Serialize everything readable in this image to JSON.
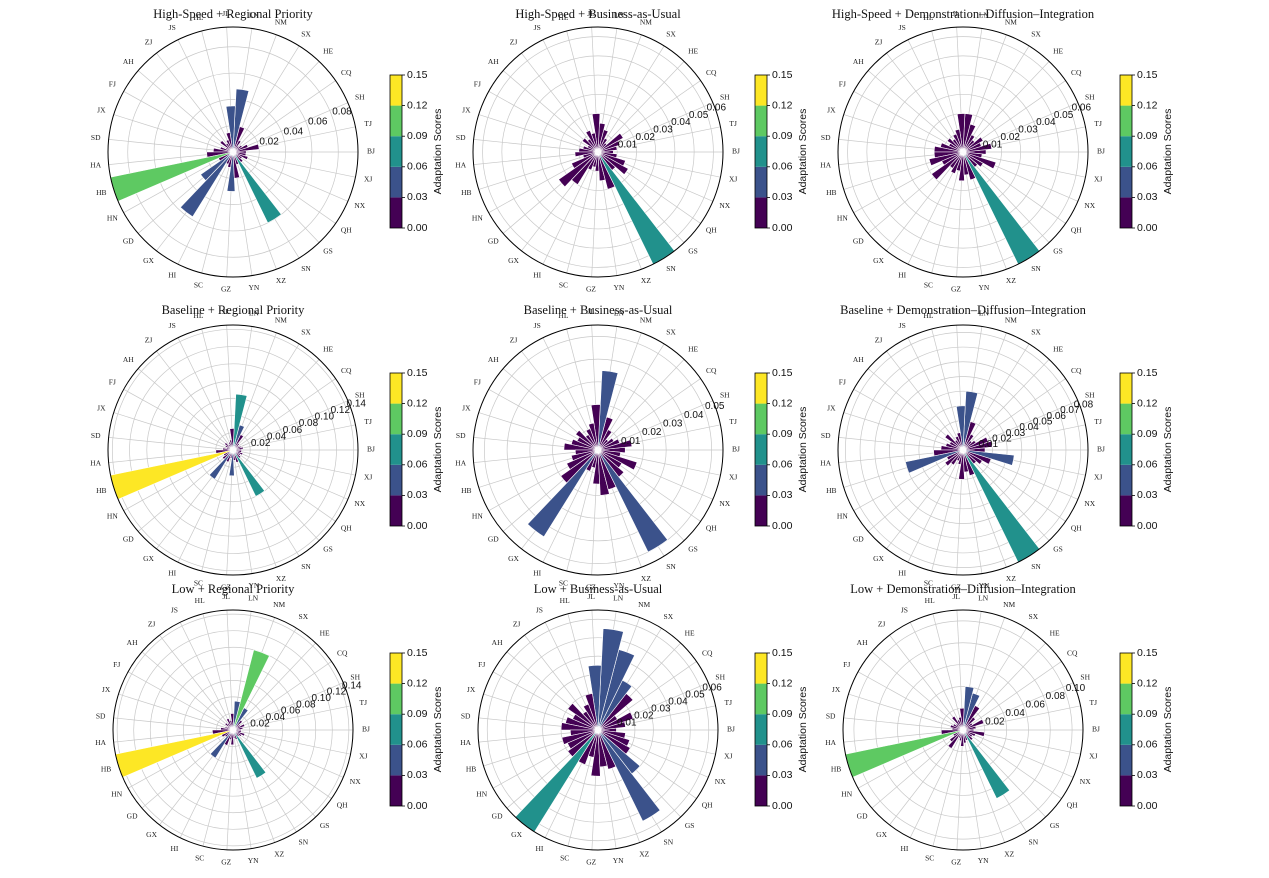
{
  "chart_data": [
    {
      "type": "polar",
      "title": "High-Speed + Regional Priority",
      "categories": [
        "BJ",
        "TJ",
        "SH",
        "CQ",
        "HE",
        "SX",
        "NM",
        "LN",
        "JL",
        "HL",
        "JS",
        "ZJ",
        "AH",
        "FJ",
        "JX",
        "SD",
        "HA",
        "HB",
        "HN",
        "GD",
        "GX",
        "HI",
        "SC",
        "GZ",
        "YN",
        "XZ",
        "SN",
        "GS",
        "QH",
        "NX",
        "XJ"
      ],
      "values": [
        0.01,
        0.02,
        0.012,
        0.008,
        0.006,
        0.01,
        0.02,
        0.048,
        0.035,
        0.015,
        0.01,
        0.008,
        0.012,
        0.006,
        0.01,
        0.015,
        0.02,
        0.095,
        0.012,
        0.03,
        0.058,
        0.01,
        0.012,
        0.03,
        0.02,
        0.01,
        0.06,
        0.01,
        0.008,
        0.012,
        0.01
      ],
      "rlim": [
        0,
        0.095
      ],
      "rticks": [
        0.02,
        0.04,
        0.06,
        0.08
      ],
      "colorbar": {
        "label": "Adaptation Scores",
        "lim": [
          0,
          0.15
        ],
        "ticks": [
          {
            "value": 0,
            "label": "0.00"
          },
          0.03,
          0.06,
          0.09,
          0.12,
          0.15
        ],
        "colors": [
          "#440154",
          "#3b528b",
          "#21918c",
          "#5ec962",
          "#fde725"
        ]
      }
    },
    {
      "type": "polar",
      "title": "High-Speed + Business-as-Usual",
      "categories": [
        "BJ",
        "TJ",
        "SH",
        "CQ",
        "HE",
        "SX",
        "NM",
        "LN",
        "JL",
        "HL",
        "JS",
        "ZJ",
        "AH",
        "FJ",
        "JX",
        "SD",
        "HA",
        "HB",
        "HN",
        "GD",
        "GX",
        "HI",
        "SC",
        "GZ",
        "YN",
        "XZ",
        "SN",
        "GS",
        "QH",
        "NX",
        "XJ"
      ],
      "values": [
        0.008,
        0.01,
        0.012,
        0.015,
        0.006,
        0.008,
        0.012,
        0.015,
        0.02,
        0.01,
        0.012,
        0.008,
        0.01,
        0.006,
        0.008,
        0.01,
        0.012,
        0.008,
        0.015,
        0.025,
        0.02,
        0.01,
        0.008,
        0.01,
        0.015,
        0.02,
        0.065,
        0.012,
        0.018,
        0.015,
        0.01
      ],
      "rlim": [
        0,
        0.065
      ],
      "rticks": [
        0.01,
        0.02,
        0.03,
        0.04,
        0.05,
        0.06
      ],
      "colorbar": {
        "label": "Adaptation Scores",
        "lim": [
          0,
          0.15
        ],
        "ticks": [
          {
            "value": 0,
            "label": "0.00"
          },
          0.03,
          0.06,
          0.09,
          0.12,
          0.15
        ],
        "colors": [
          "#440154",
          "#3b528b",
          "#21918c",
          "#5ec962",
          "#fde725"
        ]
      }
    },
    {
      "type": "polar",
      "title": "High-Speed + Demonstration–Diffusion–Integration",
      "categories": [
        "BJ",
        "TJ",
        "SH",
        "CQ",
        "HE",
        "SX",
        "NM",
        "LN",
        "JL",
        "HL",
        "JS",
        "ZJ",
        "AH",
        "FJ",
        "JX",
        "SD",
        "HA",
        "HB",
        "HN",
        "GD",
        "GX",
        "HI",
        "SC",
        "GZ",
        "YN",
        "XZ",
        "SN",
        "GS",
        "QH",
        "NX",
        "XJ"
      ],
      "values": [
        0.012,
        0.015,
        0.01,
        0.012,
        0.008,
        0.01,
        0.015,
        0.02,
        0.02,
        0.012,
        0.01,
        0.008,
        0.01,
        0.008,
        0.012,
        0.015,
        0.015,
        0.018,
        0.012,
        0.02,
        0.01,
        0.012,
        0.01,
        0.015,
        0.012,
        0.015,
        0.065,
        0.01,
        0.012,
        0.018,
        0.01
      ],
      "rlim": [
        0,
        0.065
      ],
      "rticks": [
        0.01,
        0.02,
        0.03,
        0.04,
        0.05,
        0.06
      ],
      "colorbar": {
        "label": "Adaptation Scores",
        "lim": [
          0,
          0.15
        ],
        "ticks": [
          {
            "value": 0,
            "label": "0.00"
          },
          0.03,
          0.06,
          0.09,
          0.12,
          0.15
        ],
        "colors": [
          "#440154",
          "#3b528b",
          "#21918c",
          "#5ec962",
          "#fde725"
        ]
      }
    },
    {
      "type": "polar",
      "title": "Baseline + Regional Priority",
      "categories": [
        "BJ",
        "TJ",
        "SH",
        "CQ",
        "HE",
        "SX",
        "NM",
        "LN",
        "JL",
        "HL",
        "JS",
        "ZJ",
        "AH",
        "FJ",
        "JX",
        "SD",
        "HA",
        "HB",
        "HN",
        "GD",
        "GX",
        "HI",
        "SC",
        "GZ",
        "YN",
        "XZ",
        "SN",
        "GS",
        "QH",
        "NX",
        "XJ"
      ],
      "values": [
        0.01,
        0.012,
        0.01,
        0.008,
        0.01,
        0.02,
        0.03,
        0.065,
        0.025,
        0.012,
        0.01,
        0.008,
        0.012,
        0.01,
        0.008,
        0.012,
        0.02,
        0.145,
        0.012,
        0.015,
        0.04,
        0.015,
        0.01,
        0.03,
        0.012,
        0.015,
        0.06,
        0.012,
        0.01,
        0.012,
        0.01
      ],
      "rlim": [
        0,
        0.145
      ],
      "rticks": [
        0.02,
        0.04,
        0.06,
        0.08,
        {
          "value": 0.1,
          "label": "0.10"
        },
        0.12,
        0.14
      ],
      "colorbar": {
        "label": "Adaptation Scores",
        "lim": [
          0,
          0.15
        ],
        "ticks": [
          {
            "value": 0,
            "label": "0.00"
          },
          0.03,
          0.06,
          0.09,
          0.12,
          0.15
        ],
        "colors": [
          "#440154",
          "#3b528b",
          "#21918c",
          "#5ec962",
          "#fde725"
        ]
      }
    },
    {
      "type": "polar",
      "title": "Baseline + Business-as-Usual",
      "categories": [
        "BJ",
        "TJ",
        "SH",
        "CQ",
        "HE",
        "SX",
        "NM",
        "LN",
        "JL",
        "HL",
        "JS",
        "ZJ",
        "AH",
        "FJ",
        "JX",
        "SD",
        "HA",
        "HB",
        "HN",
        "GD",
        "GX",
        "HI",
        "SC",
        "GZ",
        "YN",
        "XZ",
        "SN",
        "GS",
        "QH",
        "NX",
        "XJ"
      ],
      "values": [
        0.012,
        0.015,
        0.01,
        0.008,
        0.006,
        0.01,
        0.015,
        0.035,
        0.02,
        0.012,
        0.01,
        0.008,
        0.012,
        0.01,
        0.012,
        0.015,
        0.01,
        0.012,
        0.015,
        0.02,
        0.045,
        0.01,
        0.008,
        0.015,
        0.02,
        0.018,
        0.05,
        0.015,
        0.012,
        0.018,
        0.01
      ],
      "rlim": [
        0,
        0.055
      ],
      "rticks": [
        0.01,
        0.02,
        0.03,
        0.04,
        0.05
      ],
      "colorbar": {
        "label": "Adaptation Scores",
        "lim": [
          0,
          0.15
        ],
        "ticks": [
          {
            "value": 0,
            "label": "0.00"
          },
          0.03,
          0.06,
          0.09,
          0.12,
          0.15
        ],
        "colors": [
          "#440154",
          "#3b528b",
          "#21918c",
          "#5ec962",
          "#fde725"
        ]
      }
    },
    {
      "type": "polar",
      "title": "Baseline + Demonstration–Diffusion–Integration",
      "categories": [
        "BJ",
        "TJ",
        "SH",
        "CQ",
        "HE",
        "SX",
        "NM",
        "LN",
        "JL",
        "HL",
        "JS",
        "ZJ",
        "AH",
        "FJ",
        "JX",
        "SD",
        "HA",
        "HB",
        "HN",
        "GD",
        "GX",
        "HI",
        "SC",
        "GZ",
        "YN",
        "XZ",
        "SN",
        "GS",
        "QH",
        "NX",
        "XJ"
      ],
      "values": [
        0.015,
        0.02,
        0.018,
        0.01,
        0.008,
        0.012,
        0.02,
        0.04,
        0.03,
        0.012,
        0.01,
        0.008,
        0.015,
        0.01,
        0.012,
        0.015,
        0.02,
        0.04,
        0.012,
        0.015,
        0.012,
        0.008,
        0.01,
        0.02,
        0.015,
        0.018,
        0.085,
        0.012,
        0.015,
        0.02,
        0.035
      ],
      "rlim": [
        0,
        0.085
      ],
      "rticks": [
        0.01,
        0.02,
        0.03,
        0.04,
        0.05,
        0.06,
        0.07,
        0.08
      ],
      "colorbar": {
        "label": "Adaptation Scores",
        "lim": [
          0,
          0.15
        ],
        "ticks": [
          {
            "value": 0,
            "label": "0.00"
          },
          0.03,
          0.06,
          0.09,
          0.12,
          0.15
        ],
        "colors": [
          "#440154",
          "#3b528b",
          "#21918c",
          "#5ec962",
          "#fde725"
        ]
      }
    },
    {
      "type": "polar",
      "title": "Low + Regional Priority",
      "categories": [
        "BJ",
        "TJ",
        "SH",
        "CQ",
        "HE",
        "SX",
        "NM",
        "LN",
        "JL",
        "HL",
        "JS",
        "ZJ",
        "AH",
        "FJ",
        "JX",
        "SD",
        "HA",
        "HB",
        "HN",
        "GD",
        "GX",
        "HI",
        "SC",
        "GZ",
        "YN",
        "XZ",
        "SN",
        "GS",
        "QH",
        "NX",
        "XJ"
      ],
      "values": [
        0.01,
        0.012,
        0.015,
        0.01,
        0.015,
        0.03,
        0.1,
        0.035,
        0.02,
        0.012,
        0.015,
        0.01,
        0.012,
        0.008,
        0.01,
        0.015,
        0.025,
        0.145,
        0.015,
        0.012,
        0.04,
        0.02,
        0.012,
        0.018,
        0.01,
        0.012,
        0.065,
        0.01,
        0.012,
        0.015,
        0.01
      ],
      "rlim": [
        0,
        0.145
      ],
      "rticks": [
        0.02,
        0.04,
        0.06,
        0.08,
        {
          "value": 0.1,
          "label": "0.10"
        },
        0.12,
        0.14
      ],
      "colorbar": {
        "label": "Adaptation Scores",
        "lim": [
          0,
          0.15
        ],
        "ticks": [
          {
            "value": 0,
            "label": "0.00"
          },
          0.03,
          0.06,
          0.09,
          0.12,
          0.15
        ],
        "colors": [
          "#440154",
          "#3b528b",
          "#21918c",
          "#5ec962",
          "#fde725"
        ]
      }
    },
    {
      "type": "polar",
      "title": "Low + Business-as-Usual",
      "categories": [
        "BJ",
        "TJ",
        "SH",
        "CQ",
        "HE",
        "SX",
        "NM",
        "LN",
        "JL",
        "HL",
        "JS",
        "ZJ",
        "AH",
        "FJ",
        "JX",
        "SD",
        "HA",
        "HB",
        "HN",
        "GD",
        "GX",
        "HI",
        "SC",
        "GZ",
        "YN",
        "XZ",
        "SN",
        "GS",
        "QH",
        "NX",
        "XJ"
      ],
      "values": [
        0.01,
        0.015,
        0.02,
        0.012,
        0.025,
        0.03,
        0.045,
        0.055,
        0.035,
        0.02,
        0.015,
        0.012,
        0.02,
        0.015,
        0.018,
        0.02,
        0.015,
        0.02,
        0.018,
        0.02,
        0.065,
        0.02,
        0.015,
        0.025,
        0.02,
        0.022,
        0.055,
        0.03,
        0.02,
        0.018,
        0.015
      ],
      "rlim": [
        0,
        0.065
      ],
      "rticks": [
        0.01,
        0.02,
        0.03,
        0.04,
        0.05,
        0.06
      ],
      "colorbar": {
        "label": "Adaptation Scores",
        "lim": [
          0,
          0.15
        ],
        "ticks": [
          {
            "value": 0,
            "label": "0.00"
          },
          0.03,
          0.06,
          0.09,
          0.12,
          0.15
        ],
        "colors": [
          "#440154",
          "#3b528b",
          "#21918c",
          "#5ec962",
          "#fde725"
        ]
      }
    },
    {
      "type": "polar",
      "title": "Low + Demonstration–Diffusion–Integration",
      "categories": [
        "BJ",
        "TJ",
        "SH",
        "CQ",
        "HE",
        "SX",
        "NM",
        "LN",
        "JL",
        "HL",
        "JS",
        "ZJ",
        "AH",
        "FJ",
        "JX",
        "SD",
        "HA",
        "HB",
        "HN",
        "GD",
        "GX",
        "HI",
        "SC",
        "GZ",
        "YN",
        "XZ",
        "SN",
        "GS",
        "QH",
        "NX",
        "XJ"
      ],
      "values": [
        0.01,
        0.012,
        0.02,
        0.01,
        0.015,
        0.025,
        0.035,
        0.04,
        0.02,
        0.012,
        0.01,
        0.015,
        0.008,
        0.01,
        0.012,
        0.01,
        0.02,
        0.11,
        0.01,
        0.015,
        0.02,
        0.008,
        0.01,
        0.015,
        0.012,
        0.01,
        0.07,
        0.012,
        0.01,
        0.012,
        0.02
      ],
      "rlim": [
        0,
        0.11
      ],
      "rticks": [
        0.02,
        0.04,
        0.06,
        0.08,
        {
          "value": 0.1,
          "label": "0.10"
        }
      ],
      "colorbar": {
        "label": "Adaptation Scores",
        "lim": [
          0,
          0.15
        ],
        "ticks": [
          {
            "value": 0,
            "label": "0.00"
          },
          0.03,
          0.06,
          0.09,
          0.12,
          0.15
        ],
        "colors": [
          "#440154",
          "#3b528b",
          "#21918c",
          "#5ec962",
          "#fde725"
        ]
      }
    }
  ]
}
